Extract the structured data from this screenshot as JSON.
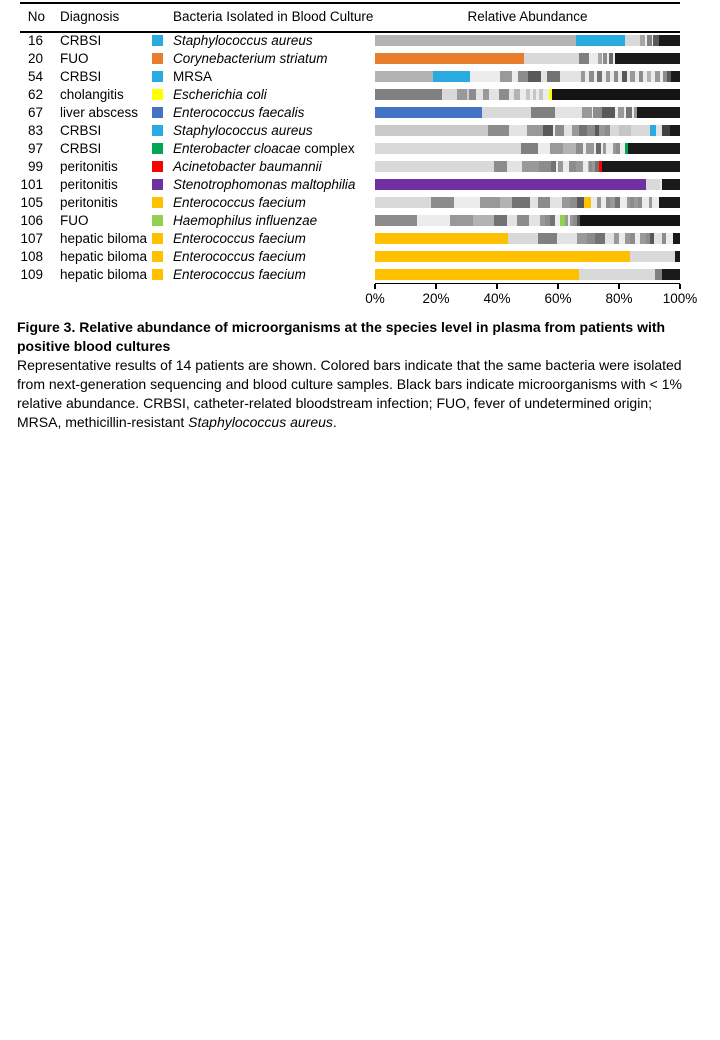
{
  "chart_data": {
    "type": "bar",
    "orientation": "horizontal",
    "stacked": true,
    "columns": {
      "no": "No",
      "diagnosis": "Diagnosis",
      "bacteria": "Bacteria Isolated in Blood Culture",
      "abundance": "Relative Abundance"
    },
    "x_axis": {
      "range": [
        0,
        100
      ],
      "ticks": [
        "0%",
        "20%",
        "40%",
        "60%",
        "80%",
        "100%"
      ]
    },
    "palette": {
      "cyan": "#29ABE2",
      "orange": "#E87D2E",
      "yellow": "#FFFF00",
      "blue": "#4472C4",
      "green": "#00A651",
      "red": "#FF0000",
      "purple": "#7030A0",
      "amber": "#FFC000",
      "light_green": "#92D050",
      "black_lt1pct": "#1a1a1a"
    },
    "rows": [
      {
        "no": "16",
        "diagnosis": "CRBSI",
        "bacteria": {
          "italic": "Staphylococcus aureus",
          "roman": ""
        },
        "color": "#29ABE2",
        "segments": [
          [
            "#b3b3b3",
            66
          ],
          [
            "#29ABE2",
            16
          ],
          [
            "#d9d9d9",
            5
          ],
          [
            "#a6a6a6",
            1.5
          ],
          [
            "#ececec",
            0.8
          ],
          [
            "#808080",
            1.5
          ],
          [
            "#ececec",
            0.5
          ],
          [
            "#595959",
            1.7
          ],
          [
            "#1a1a1a",
            7
          ]
        ]
      },
      {
        "no": "20",
        "diagnosis": "FUO",
        "bacteria": {
          "italic": "Corynebacterium striatum",
          "roman": ""
        },
        "color": "#E87D2E",
        "segments": [
          [
            "#E87D2E",
            49
          ],
          [
            "#d9d9d9",
            18
          ],
          [
            "#808080",
            3
          ],
          [
            "#ececec",
            3
          ],
          [
            "#a6a6a6",
            1.3
          ],
          [
            "#ececec",
            0.6
          ],
          [
            "#8c8c8c",
            1.3
          ],
          [
            "#ececec",
            0.5
          ],
          [
            "#696969",
            1.4
          ],
          [
            "#ececec",
            0.6
          ],
          [
            "#1a1a1a",
            21.3
          ]
        ]
      },
      {
        "no": "54",
        "diagnosis": "CRBSI",
        "bacteria": {
          "italic": "",
          "roman": "MRSA"
        },
        "color": "#29ABE2",
        "segments": [
          [
            "#b3b3b3",
            19
          ],
          [
            "#29ABE2",
            12
          ],
          [
            "#ececec",
            10
          ],
          [
            "#999999",
            4
          ],
          [
            "#ececec",
            2
          ],
          [
            "#8c8c8c",
            3
          ],
          [
            "#595959",
            4.5
          ],
          [
            "#e3e3e3",
            2
          ],
          [
            "#737373",
            4
          ],
          [
            "#e3e3e3",
            7
          ],
          [
            "#999999",
            1.5
          ],
          [
            "#ececec",
            1.2
          ],
          [
            "#8c8c8c",
            1.5
          ],
          [
            "#ececec",
            1.2
          ],
          [
            "#737373",
            1.5
          ],
          [
            "#ececec",
            1.2
          ],
          [
            "#999999",
            1.5
          ],
          [
            "#ececec",
            1.2
          ],
          [
            "#8c8c8c",
            1.5
          ],
          [
            "#ececec",
            1.2
          ],
          [
            "#595959",
            1.5
          ],
          [
            "#ececec",
            1.2
          ],
          [
            "#999999",
            1.5
          ],
          [
            "#ececec",
            1.2
          ],
          [
            "#8c8c8c",
            1.5
          ],
          [
            "#ececec",
            1.2
          ],
          [
            "#b3b3b3",
            1.5
          ],
          [
            "#ececec",
            1.2
          ],
          [
            "#999999",
            1.5
          ],
          [
            "#ececec",
            1.2
          ],
          [
            "#8c8c8c",
            1.4
          ],
          [
            "#595959",
            1.3
          ],
          [
            "#1a1a1a",
            2.8
          ]
        ]
      },
      {
        "no": "62",
        "diagnosis": "cholangitis",
        "bacteria": {
          "italic": "Escherichia coli",
          "roman": ""
        },
        "color": "#FFFF00",
        "segments": [
          [
            "#808080",
            22
          ],
          [
            "#d9d9d9",
            5
          ],
          [
            "#999999",
            3
          ],
          [
            "#cccccc",
            0.8
          ],
          [
            "#8c8c8c",
            2.2
          ],
          [
            "#e3e3e3",
            2.5
          ],
          [
            "#999999",
            2
          ],
          [
            "#e3e3e3",
            3
          ],
          [
            "#8c8c8c",
            3.5
          ],
          [
            "#e3e3e3",
            1.5
          ],
          [
            "#b3b3b3",
            2
          ],
          [
            "#ececec",
            2
          ],
          [
            "#c6c6c6",
            1.2
          ],
          [
            "#ececec",
            1
          ],
          [
            "#c6c6c6",
            1.2
          ],
          [
            "#ececec",
            1
          ],
          [
            "#c6c6c6",
            1.2
          ],
          [
            "#ececec",
            1.9
          ],
          [
            "#FFFF00",
            1
          ],
          [
            "#141414",
            42
          ]
        ]
      },
      {
        "no": "67",
        "diagnosis": "liver abscess",
        "bacteria": {
          "italic": "Enterococcus faecalis",
          "roman": ""
        },
        "color": "#4472C4",
        "segments": [
          [
            "#4472C4",
            35
          ],
          [
            "#d9d9d9",
            16
          ],
          [
            "#808080",
            8
          ],
          [
            "#e3e3e3",
            9
          ],
          [
            "#999999",
            3
          ],
          [
            "#ececec",
            0.5
          ],
          [
            "#8c8c8c",
            3
          ],
          [
            "#595959",
            4.3
          ],
          [
            "#ececec",
            0.7
          ],
          [
            "#999999",
            2.2
          ],
          [
            "#ececec",
            0.5
          ],
          [
            "#737373",
            2.2
          ],
          [
            "#ececec",
            0.5
          ],
          [
            "#999999",
            1.1
          ],
          [
            "#1a1a1a",
            14
          ]
        ]
      },
      {
        "no": "83",
        "diagnosis": "CRBSI",
        "bacteria": {
          "italic": "Staphylococcus aureus",
          "roman": ""
        },
        "color": "#29ABE2",
        "segments": [
          [
            "#c9c9c9",
            37
          ],
          [
            "#8c8c8c",
            7
          ],
          [
            "#e3e3e3",
            6
          ],
          [
            "#999999",
            5
          ],
          [
            "#595959",
            3.5
          ],
          [
            "#ececec",
            0.5
          ],
          [
            "#8c8c8c",
            3
          ],
          [
            "#e3e3e3",
            2.5
          ],
          [
            "#999999",
            2.5
          ],
          [
            "#737373",
            2.5
          ],
          [
            "#8c8c8c",
            2.5
          ],
          [
            "#595959",
            1.5
          ],
          [
            "#999999",
            2
          ],
          [
            "#8c8c8c",
            1.5
          ],
          [
            "#d9d9d9",
            3
          ],
          [
            "#c6c6c6",
            4
          ],
          [
            "#d9d9d9",
            6
          ],
          [
            "#29ABE2",
            2
          ],
          [
            "#e3e3e3",
            2.2
          ],
          [
            "#404040",
            2.5
          ],
          [
            "#1a1a1a",
            3.3
          ]
        ]
      },
      {
        "no": "97",
        "diagnosis": "CRBSI",
        "bacteria": {
          "italic": "Enterobacter cloacae",
          "roman": " complex"
        },
        "color": "#00A651",
        "segments": [
          [
            "#d9d9d9",
            48
          ],
          [
            "#808080",
            5.5
          ],
          [
            "#ececec",
            4
          ],
          [
            "#999999",
            4
          ],
          [
            "#b3b3b3",
            4.5
          ],
          [
            "#8c8c8c",
            2.2
          ],
          [
            "#ececec",
            1
          ],
          [
            "#999999",
            2.7
          ],
          [
            "#ececec",
            0.5
          ],
          [
            "#696969",
            1.7
          ],
          [
            "#ececec",
            0.5
          ],
          [
            "#999999",
            1
          ],
          [
            "#ececec",
            2.3
          ],
          [
            "#999999",
            1.2
          ],
          [
            "#8c8c8c",
            1.3
          ],
          [
            "#ececec",
            1.6
          ],
          [
            "#00A651",
            0.9
          ],
          [
            "#1a1a1a",
            17.1
          ]
        ]
      },
      {
        "no": "99",
        "diagnosis": "peritonitis",
        "bacteria": {
          "italic": "Acinetobacter baumannii",
          "roman": ""
        },
        "color": "#FF0000",
        "segments": [
          [
            "#d9d9d9",
            39
          ],
          [
            "#8c8c8c",
            4.3
          ],
          [
            "#e3e3e3",
            5
          ],
          [
            "#999999",
            5.5
          ],
          [
            "#8c8c8c",
            4
          ],
          [
            "#737373",
            1.7
          ],
          [
            "#ececec",
            0.5
          ],
          [
            "#999999",
            1.7
          ],
          [
            "#ececec",
            2
          ],
          [
            "#8c8c8c",
            2.2
          ],
          [
            "#999999",
            2.2
          ],
          [
            "#ececec",
            1.6
          ],
          [
            "#b3b3b3",
            0.6
          ],
          [
            "#8c8c8c",
            0.9
          ],
          [
            "#999999",
            0.9
          ],
          [
            "#737373",
            1.2
          ],
          [
            "#ececec",
            0.3
          ],
          [
            "#FF0000",
            0.8
          ],
          [
            "#1a1a1a",
            25.6
          ]
        ]
      },
      {
        "no": "101",
        "diagnosis": "peritonitis",
        "bacteria": {
          "italic": "Stenotrophomonas maltophilia",
          "roman": ""
        },
        "color": "#7030A0",
        "segments": [
          [
            "#7030A0",
            89
          ],
          [
            "#d9d9d9",
            4.5
          ],
          [
            "#ececec",
            0.5
          ],
          [
            "#1a1a1a",
            6
          ]
        ]
      },
      {
        "no": "105",
        "diagnosis": "peritonitis",
        "bacteria": {
          "italic": "Enterococcus faecium",
          "roman": ""
        },
        "color": "#FFC000",
        "segments": [
          [
            "#d9d9d9",
            18.5
          ],
          [
            "#8c8c8c",
            7.5
          ],
          [
            "#ececec",
            8.5
          ],
          [
            "#999999",
            6.5
          ],
          [
            "#b3b3b3",
            3.8
          ],
          [
            "#737373",
            6
          ],
          [
            "#e3e3e3",
            2.8
          ],
          [
            "#8c8c8c",
            3.8
          ],
          [
            "#e3e3e3",
            3.8
          ],
          [
            "#999999",
            2.7
          ],
          [
            "#8c8c8c",
            2.2
          ],
          [
            "#595959",
            2.4
          ],
          [
            "#FFC000",
            2.4
          ],
          [
            "#ececec",
            2
          ],
          [
            "#999999",
            1.1
          ],
          [
            "#ececec",
            1.6
          ],
          [
            "#8c8c8c",
            1.6
          ],
          [
            "#999999",
            1.6
          ],
          [
            "#737373",
            1.6
          ],
          [
            "#ececec",
            2.2
          ],
          [
            "#999999",
            1.1
          ],
          [
            "#8c8c8c",
            1.1
          ],
          [
            "#999999",
            1.6
          ],
          [
            "#8c8c8c",
            1.1
          ],
          [
            "#ececec",
            2.2
          ],
          [
            "#999999",
            1.1
          ],
          [
            "#ececec",
            2.2
          ],
          [
            "#1a1a1a",
            7
          ]
        ]
      },
      {
        "no": "106",
        "diagnosis": "FUO",
        "bacteria": {
          "italic": "Haemophilus influenzae",
          "roman": ""
        },
        "color": "#92D050",
        "segments": [
          [
            "#8c8c8c",
            13.7
          ],
          [
            "#ececec",
            11
          ],
          [
            "#999999",
            7.4
          ],
          [
            "#b3b3b3",
            6.8
          ],
          [
            "#737373",
            4.4
          ],
          [
            "#e3e3e3",
            3.3
          ],
          [
            "#8c8c8c",
            3.8
          ],
          [
            "#e3e3e3",
            3.8
          ],
          [
            "#999999",
            1.7
          ],
          [
            "#8c8c8c",
            1.6
          ],
          [
            "#737373",
            1.6
          ],
          [
            "#ececec",
            1.5
          ],
          [
            "#92D050",
            1.6
          ],
          [
            "#999999",
            1.2
          ],
          [
            "#ececec",
            0.5
          ],
          [
            "#999999",
            1.1
          ],
          [
            "#8c8c8c",
            1.1
          ],
          [
            "#595959",
            1.2
          ],
          [
            "#141414",
            32.7
          ]
        ]
      },
      {
        "no": "107",
        "diagnosis": "hepatic biloma",
        "bacteria": {
          "italic": "Enterococcus faecium",
          "roman": ""
        },
        "color": "#FFC000",
        "segments": [
          [
            "#FFC000",
            43.7
          ],
          [
            "#d9d9d9",
            9.9
          ],
          [
            "#808080",
            6
          ],
          [
            "#e3e3e3",
            6.5
          ],
          [
            "#999999",
            3.3
          ],
          [
            "#8c8c8c",
            2.8
          ],
          [
            "#737373",
            3.3
          ],
          [
            "#e3e3e3",
            2.7
          ],
          [
            "#999999",
            1.7
          ],
          [
            "#ececec",
            2.1
          ],
          [
            "#999999",
            1.7
          ],
          [
            "#8c8c8c",
            1.7
          ],
          [
            "#ececec",
            1.6
          ],
          [
            "#999999",
            1.7
          ],
          [
            "#8c8c8c",
            1.6
          ],
          [
            "#595959",
            1.1
          ],
          [
            "#e3e3e3",
            2.6
          ],
          [
            "#8c8c8c",
            1.5
          ],
          [
            "#ececec",
            2.2
          ],
          [
            "#1a1a1a",
            2.3
          ]
        ]
      },
      {
        "no": "108",
        "diagnosis": "hepatic biloma",
        "bacteria": {
          "italic": "Enterococcus faecium",
          "roman": ""
        },
        "color": "#FFC000",
        "segments": [
          [
            "#FFC000",
            83.6
          ],
          [
            "#d9d9d9",
            14.8
          ],
          [
            "#1a1a1a",
            1.6
          ]
        ]
      },
      {
        "no": "109",
        "diagnosis": "hepatic biloma",
        "bacteria": {
          "italic": "Enterococcus faecium",
          "roman": ""
        },
        "color": "#FFC000",
        "segments": [
          [
            "#FFC000",
            67
          ],
          [
            "#d9d9d9",
            24.8
          ],
          [
            "#808080",
            2.2
          ],
          [
            "#1a1a1a",
            6
          ]
        ]
      }
    ]
  },
  "caption": {
    "title": "Figure 3. Relative abundance of microorganisms at the species level in plasma from patients with positive blood cultures",
    "body": [
      {
        "text": "Representative results of 14 patients are shown. Colored bars indicate that the same bacteria were isolated from next-generation sequencing and blood culture samples. Black bars indicate microorganisms with < 1% relative abundance. CRBSI, catheter-related bloodstream infection; FUO, fever of undetermined origin; MRSA, methicillin-resistant ",
        "italic": false
      },
      {
        "text": "Staphylococcus aureus",
        "italic": true
      },
      {
        "text": ".",
        "italic": false
      }
    ]
  }
}
